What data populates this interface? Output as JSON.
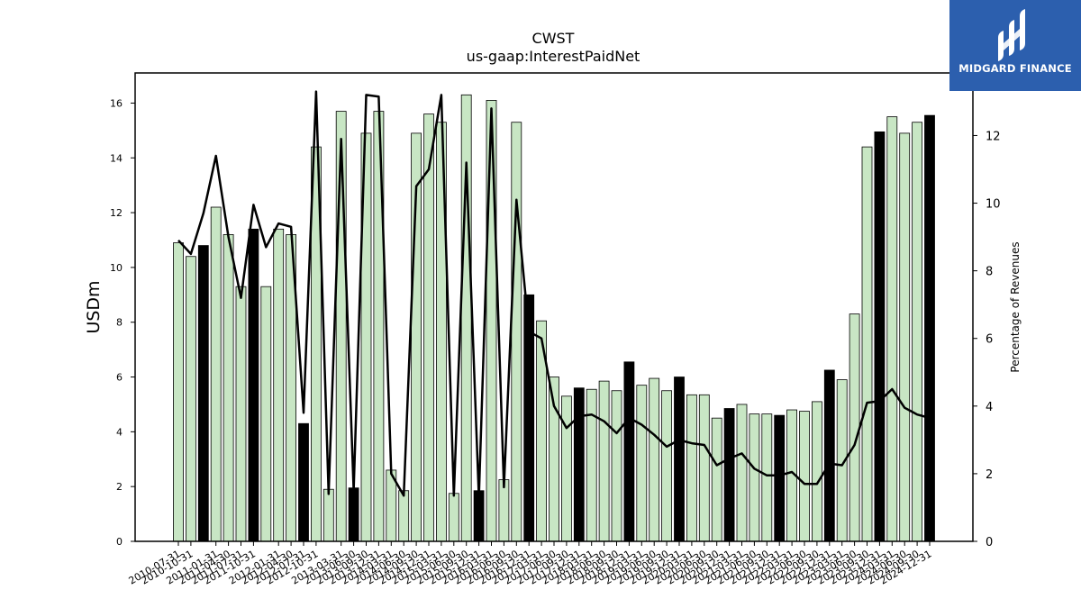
{
  "chart_data": {
    "type": "bar+line",
    "title": "CWST",
    "subtitle": "us-gaap:InterestPaidNet",
    "ylabel": "USDm",
    "y2label": "Percentage of Revenues",
    "ylim": [
      0,
      17.1
    ],
    "y2lim": [
      0,
      13.85
    ],
    "yticks": [
      0,
      2,
      4,
      6,
      8,
      10,
      12,
      14,
      16
    ],
    "y2ticks": [
      0,
      2,
      4,
      6,
      8,
      10,
      12
    ],
    "categories": [
      "2010-07-31",
      "2010-10-31",
      "2010-12-31",
      "2011-01-31",
      "2011-04-30",
      "2011-07-31",
      "2011-10-31",
      "2011-12-31",
      "2012-01-31",
      "2012-04-30",
      "2012-07-31",
      "2012-10-31",
      "2012-12-31",
      "2013-03-31",
      "2013-06-30",
      "2013-09-30",
      "2013-12-31",
      "2014-03-31",
      "2014-06-30",
      "2014-09-30",
      "2014-12-31",
      "2015-03-31",
      "2015-06-30",
      "2015-09-30",
      "2015-12-31",
      "2016-03-31",
      "2016-06-30",
      "2016-09-30",
      "2016-12-31",
      "2017-03-31",
      "2017-06-30",
      "2017-09-30",
      "2017-12-31",
      "2018-03-31",
      "2018-06-30",
      "2018-09-30",
      "2018-12-31",
      "2019-03-31",
      "2019-06-30",
      "2019-09-30",
      "2019-12-31",
      "2020-03-31",
      "2020-06-30",
      "2020-09-30",
      "2020-12-31",
      "2021-03-31",
      "2021-06-30",
      "2021-09-30",
      "2021-12-31",
      "2022-03-31",
      "2022-06-30",
      "2022-09-30",
      "2022-12-31",
      "2023-03-31",
      "2023-06-30",
      "2023-09-30",
      "2023-12-31",
      "2024-03-31",
      "2024-06-30",
      "2024-09-30",
      "2024-12-31"
    ],
    "xtick_labels": [
      "2010-07-31",
      "2010-10-31",
      "2011-01-31",
      "2011-04-30",
      "2011-07-31",
      "2011-10-31",
      "2012-01-31",
      "2012-04-30",
      "2012-07-31",
      "2012-10-31",
      "2013-03-31",
      "2013-06-30",
      "2013-09-30",
      "2013-12-31",
      "2014-03-31",
      "2014-06-30",
      "2014-09-30",
      "2014-12-31",
      "2015-03-31",
      "2015-06-30",
      "2015-09-30",
      "2015-12-31",
      "2016-03-31",
      "2016-06-30",
      "2016-09-30",
      "2016-12-31",
      "2017-03-31",
      "2017-06-30",
      "2017-09-30",
      "2017-12-31",
      "2018-03-31",
      "2018-06-30",
      "2018-09-30",
      "2018-12-31",
      "2019-03-31",
      "2019-06-30",
      "2019-09-30",
      "2019-12-31",
      "2020-03-31",
      "2020-06-30",
      "2020-09-30",
      "2020-12-31",
      "2021-03-31",
      "2021-06-30",
      "2021-09-30",
      "2021-12-31",
      "2022-03-31",
      "2022-06-30",
      "2022-09-30",
      "2022-12-31",
      "2023-03-31",
      "2023-06-30",
      "2023-09-30",
      "2023-12-31",
      "2024-03-31",
      "2024-06-30",
      "2024-09-30",
      "2024-12-31"
    ],
    "series": [
      {
        "kind": "bar",
        "values": [
          10.9,
          10.4,
          10.8,
          12.2,
          11.2,
          9.3,
          11.4,
          9.3,
          11.4,
          11.2,
          4.3,
          14.4,
          1.9,
          15.7,
          1.95,
          14.9,
          15.7,
          2.6,
          1.85,
          14.9,
          15.6,
          15.3,
          1.75,
          16.3,
          1.85,
          16.1,
          2.25,
          15.3,
          9.0,
          8.05,
          6.0,
          5.3,
          5.6,
          5.55,
          5.85,
          5.5,
          6.55,
          5.7,
          5.95,
          5.5,
          6.0,
          5.35,
          5.35,
          4.5,
          4.85,
          5.0,
          4.65,
          4.65,
          4.6,
          4.8,
          4.75,
          5.1,
          6.25,
          5.9,
          8.3,
          14.4,
          14.95,
          15.5,
          14.9,
          15.3,
          15.55
        ],
        "highlight": [
          false,
          false,
          true,
          false,
          false,
          false,
          true,
          false,
          false,
          false,
          true,
          false,
          false,
          false,
          true,
          false,
          false,
          false,
          false,
          false,
          false,
          false,
          false,
          false,
          true,
          false,
          false,
          false,
          true,
          false,
          false,
          false,
          true,
          false,
          false,
          false,
          true,
          false,
          false,
          false,
          true,
          false,
          false,
          false,
          true,
          false,
          false,
          false,
          true,
          false,
          false,
          false,
          true,
          false,
          false,
          false,
          true,
          false,
          false,
          false,
          true
        ]
      },
      {
        "kind": "line",
        "axis": "right",
        "values": [
          8.9,
          8.5,
          9.7,
          11.4,
          9.0,
          7.2,
          9.95,
          8.7,
          9.4,
          9.3,
          3.8,
          13.3,
          1.4,
          11.9,
          1.5,
          13.2,
          13.15,
          2.0,
          1.35,
          10.5,
          11.0,
          13.2,
          1.35,
          11.2,
          1.3,
          12.8,
          1.6,
          10.1,
          6.2,
          6.0,
          4.0,
          3.35,
          3.7,
          3.75,
          3.55,
          3.2,
          3.65,
          3.45,
          3.15,
          2.8,
          3.0,
          2.9,
          2.85,
          2.25,
          2.45,
          2.6,
          2.15,
          1.95,
          1.95,
          2.05,
          1.7,
          1.7,
          2.3,
          2.25,
          2.85,
          4.1,
          4.15,
          4.5,
          3.95,
          3.75,
          3.65
        ]
      }
    ],
    "colors": {
      "bar": "#c8e6c4",
      "bar_highlight": "#000000",
      "line": "#000000",
      "edge": "#000000"
    }
  },
  "branding": {
    "logo_text": "MIDGARD FINANCE",
    "logo_color": "#2c5fae"
  }
}
